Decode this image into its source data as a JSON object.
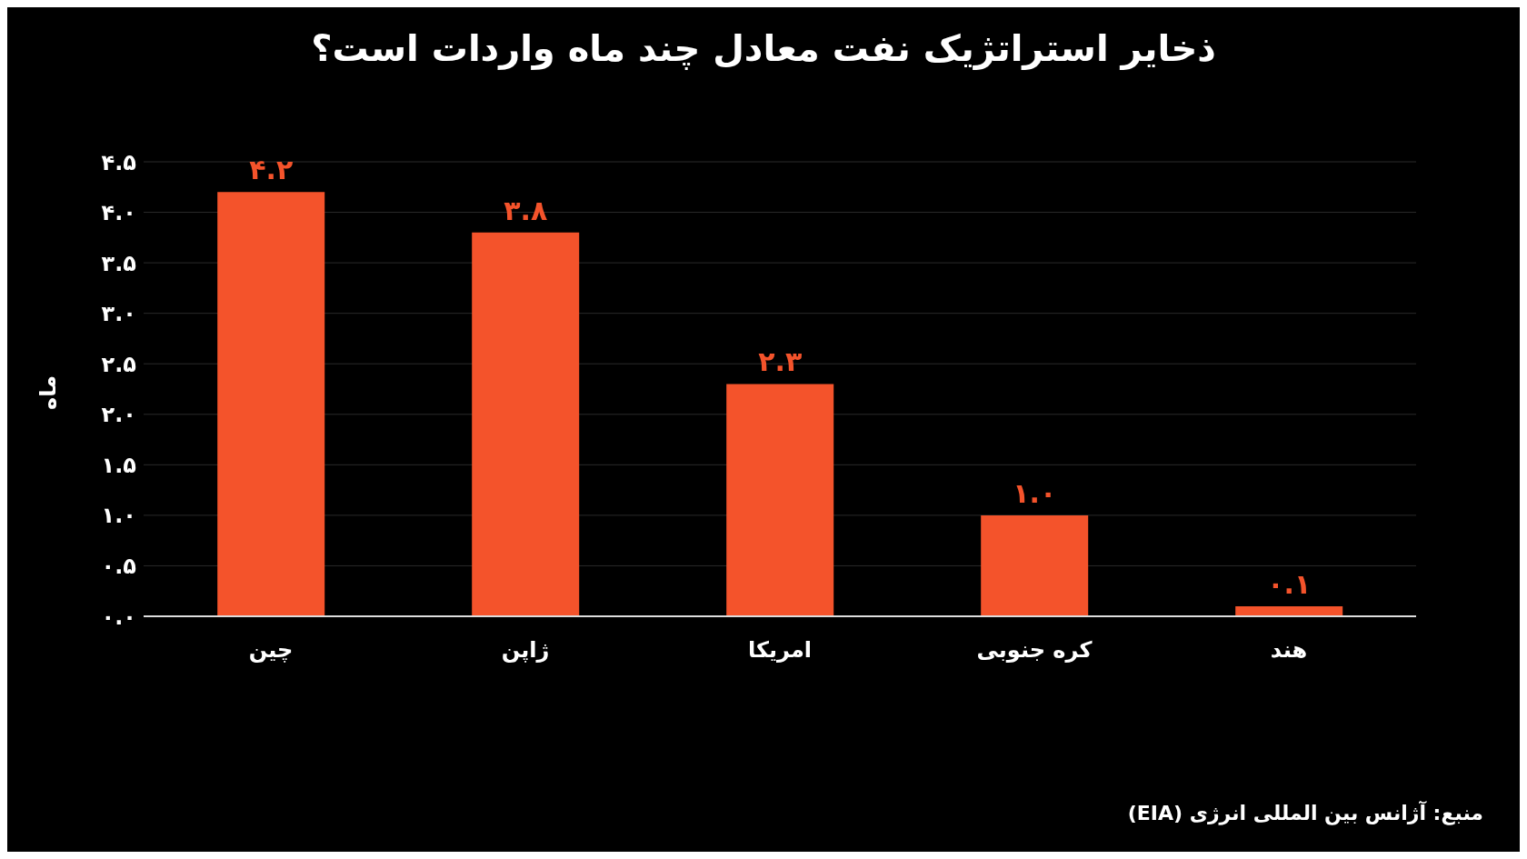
{
  "chart_data": {
    "type": "bar",
    "title": "ذخایر استراتژیک نفت معادل چند ماه واردات است؟",
    "ylabel": "ماه",
    "categories": [
      "چین",
      "ژاپن",
      "امریکا",
      "کره جنوبی",
      "هند"
    ],
    "values": [
      4.2,
      3.8,
      2.3,
      1.0,
      0.1
    ],
    "value_labels": [
      "۴.۲",
      "۳.۸",
      "۲.۳",
      "۱.۰",
      "۰.۱"
    ],
    "color": "#f4532b",
    "ylim": [
      0,
      4.5
    ],
    "yticks": [
      {
        "value": 0,
        "label": "۰.۰"
      },
      {
        "value": 0.5,
        "label": "۰.۵"
      },
      {
        "value": 1,
        "label": "۱.۰"
      },
      {
        "value": 1.5,
        "label": "۱.۵"
      },
      {
        "value": 2,
        "label": "۲.۰"
      },
      {
        "value": 2.5,
        "label": "۲.۵"
      },
      {
        "value": 3,
        "label": "۳.۰"
      },
      {
        "value": 3.5,
        "label": "۳.۵"
      },
      {
        "value": 4,
        "label": "۴.۰"
      },
      {
        "value": 4.5,
        "label": "۴.۵"
      }
    ],
    "grid": "y",
    "legend": false,
    "annotations": [
      "منبع: آژانس بین المللی انرژی (EIA)"
    ]
  }
}
